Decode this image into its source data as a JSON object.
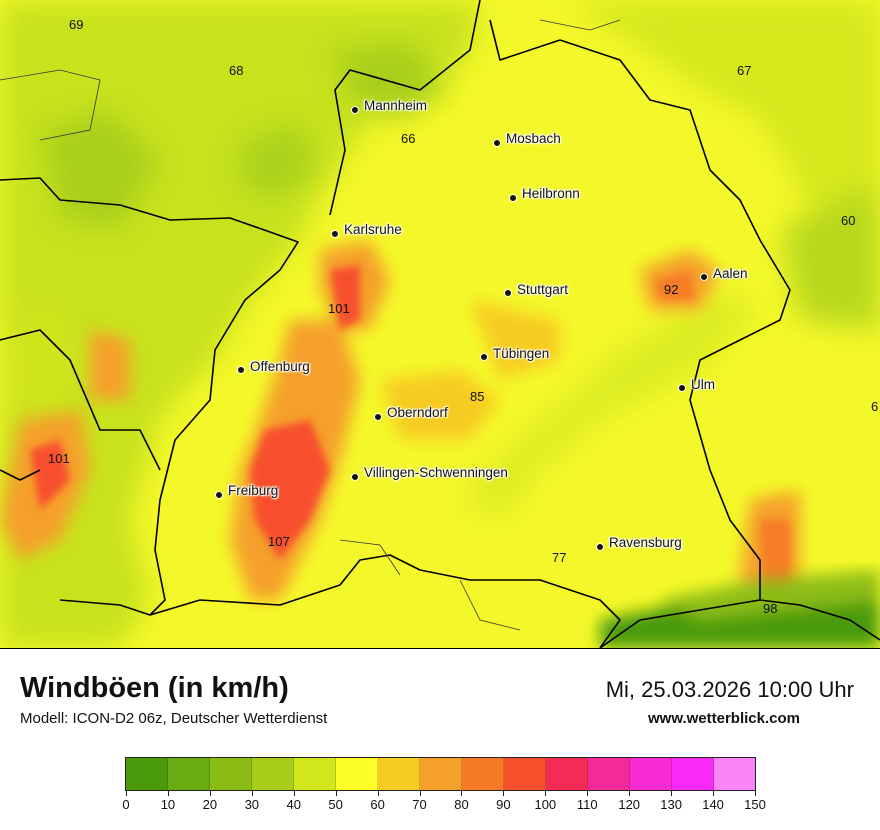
{
  "title": "Windböen (in km/h)",
  "subtitle": "Modell: ICON-D2 06z, Deutscher Wetterdienst",
  "datetime": "Mi, 25.03.2026 10:00 Uhr",
  "website": "www.wetterblick.com",
  "cities": [
    {
      "name": "Mannheim"
    },
    {
      "name": "Mosbach"
    },
    {
      "name": "Heilbronn"
    },
    {
      "name": "Karlsruhe"
    },
    {
      "name": "Stuttgart"
    },
    {
      "name": "Aalen"
    },
    {
      "name": "Tübingen"
    },
    {
      "name": "Offenburg"
    },
    {
      "name": "Ulm"
    },
    {
      "name": "Oberndorf"
    },
    {
      "name": "Villingen-Schwenningen"
    },
    {
      "name": "Freiburg"
    },
    {
      "name": "Ravensburg"
    }
  ],
  "values": [
    "69",
    "68",
    "67",
    "66",
    "60",
    "101",
    "92",
    "85",
    "6",
    "101",
    "107",
    "77",
    "98"
  ],
  "legend": {
    "ticks": [
      "0",
      "10",
      "20",
      "30",
      "40",
      "50",
      "60",
      "70",
      "80",
      "90",
      "100",
      "110",
      "120",
      "130",
      "140",
      "150"
    ],
    "colors": [
      "#4a9a0a",
      "#6aaa12",
      "#8cbd16",
      "#a8cc1a",
      "#d2e61c",
      "#ffff2a",
      "#f7cc22",
      "#f5a02a",
      "#f77b27",
      "#f7502d",
      "#f52a55",
      "#f52a9a",
      "#fa2ad2",
      "#f82af7",
      "#fb85f7"
    ]
  }
}
